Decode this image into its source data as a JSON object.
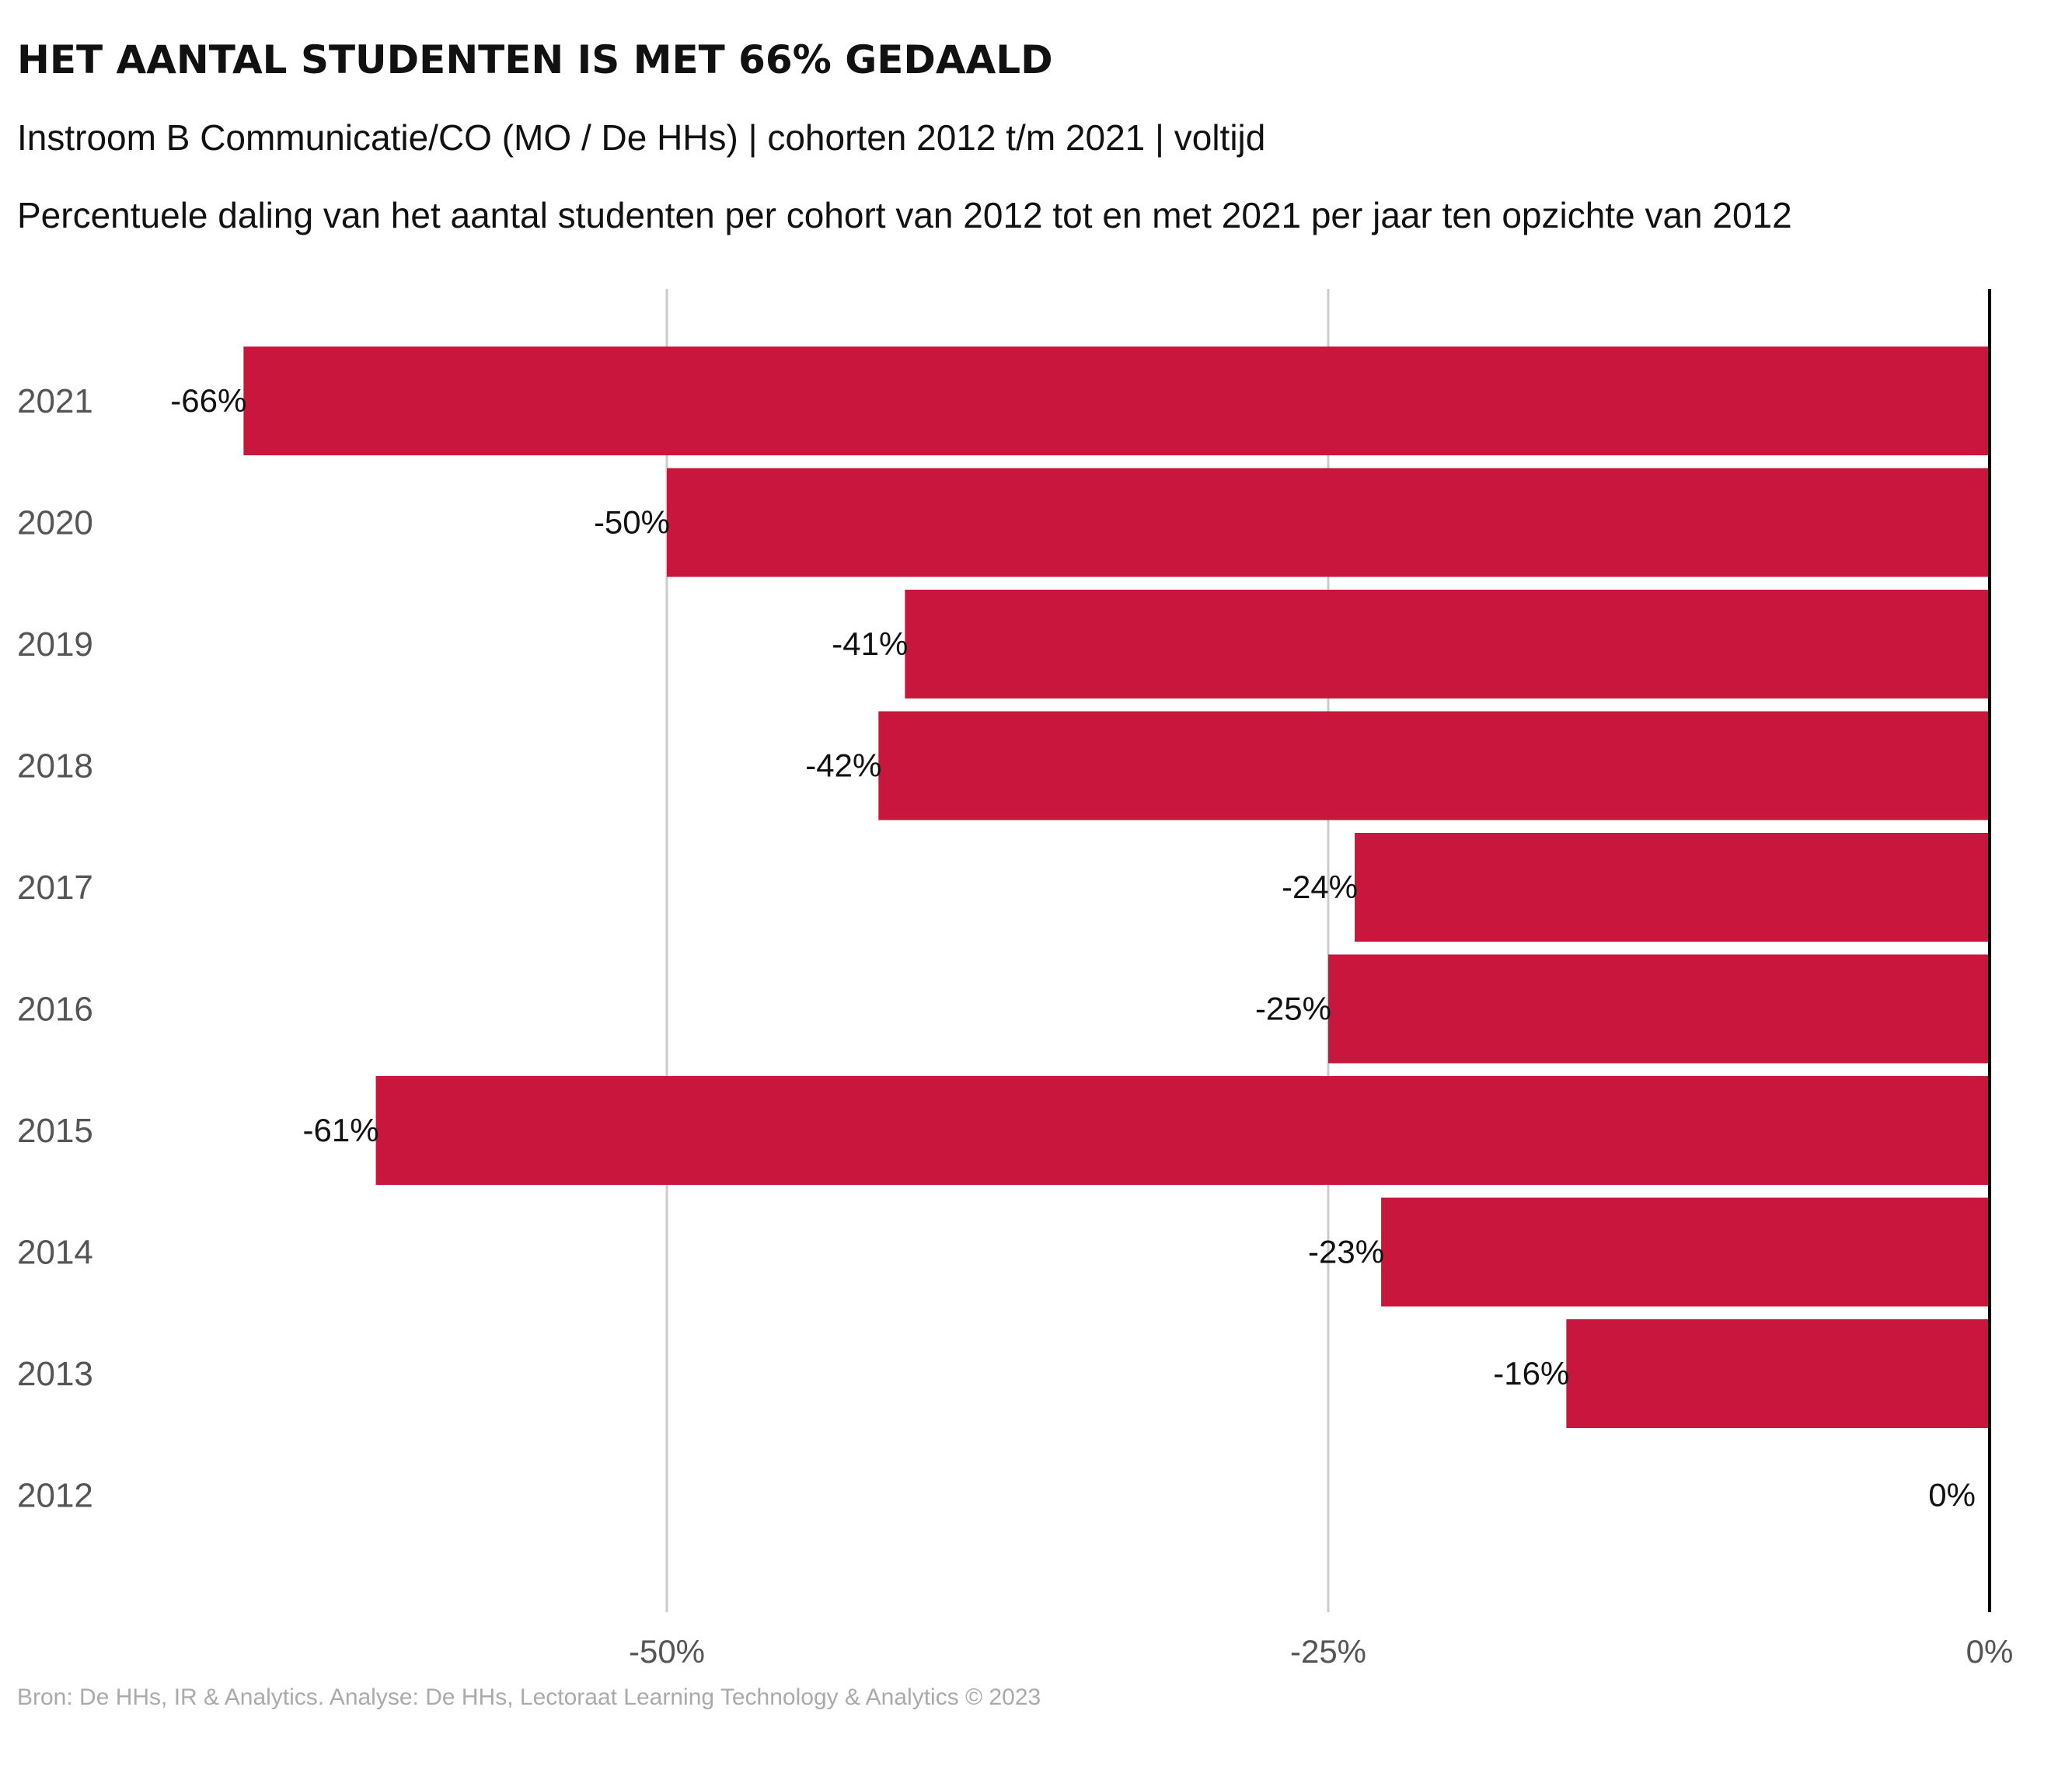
{
  "title": "HET AANTAL STUDENTEN IS MET 66% GEDAALD",
  "subtitle": "Instroom B Communicatie/CO (MO / De HHs) | cohorten 2012 t/m 2021 | voltijd",
  "description": "Percentuele daling van het aantal studenten per cohort van 2012 tot en met 2021 per jaar ten opzichte van 2012",
  "caption": "Bron: De HHs, IR & Analytics. Analyse: De HHs, Lectoraat Learning Technology & Analytics © 2023",
  "colors": {
    "bar": "#C8163C",
    "grid": "#cccccc",
    "zero_line": "#000000",
    "tick_text": "#555555"
  },
  "chart_data": {
    "type": "bar",
    "orientation": "horizontal",
    "categories": [
      "2021",
      "2020",
      "2019",
      "2018",
      "2017",
      "2016",
      "2015",
      "2014",
      "2013",
      "2012"
    ],
    "values": [
      -66,
      -50,
      -41,
      -42,
      -24,
      -25,
      -61,
      -23,
      -16,
      0
    ],
    "value_labels": [
      "-66%",
      "-50%",
      "-41%",
      "-42%",
      "-24%",
      "-25%",
      "-61%",
      "-23%",
      "-16%",
      "0%"
    ],
    "xlim": [
      -66,
      0
    ],
    "xticks": [
      -50,
      -25,
      0
    ],
    "xtick_labels": [
      "-50%",
      "-25%",
      "0%"
    ],
    "grid": true
  }
}
